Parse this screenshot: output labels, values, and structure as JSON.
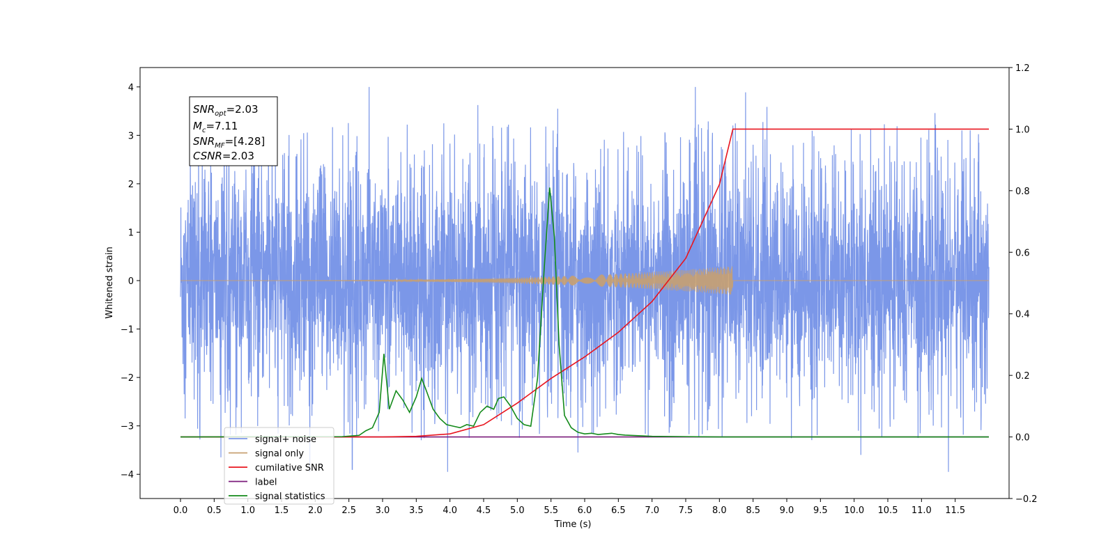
{
  "chart_data": {
    "type": "line",
    "xlabel": "Time (s)",
    "ylabel": "Whitened strain",
    "ylabel_right": "",
    "xlim": [
      -0.6,
      12.3
    ],
    "ylim": [
      -4.5,
      4.4
    ],
    "ylim_right": [
      -0.2,
      1.2
    ],
    "x_ticks": [
      "0.0",
      "0.5",
      "1.0",
      "1.5",
      "2.0",
      "2.5",
      "3.0",
      "3.5",
      "4.0",
      "4.5",
      "5.0",
      "5.5",
      "6.0",
      "6.5",
      "7.0",
      "7.5",
      "8.0",
      "8.5",
      "9.0",
      "9.5",
      "10.0",
      "10.5",
      "11.0",
      "11.5"
    ],
    "y_ticks": [
      4,
      3,
      2,
      1,
      0,
      -1,
      -2,
      -3,
      -4
    ],
    "y_ticks_right": [
      "1.2",
      "1.0",
      "0.8",
      "0.6",
      "0.4",
      "0.2",
      "0.0",
      "−0.2"
    ],
    "grid": false,
    "legend_position": "lower-left",
    "info_box": {
      "snr_opt": "=2.03",
      "mc": "=7.11",
      "snr_mf": "=[4.28]",
      "csnr": "=2.03"
    },
    "series": [
      {
        "name": "signal+ noise",
        "color": "#7b97e8",
        "axis": "left",
        "t_range": [
          0.0,
          12.0
        ],
        "envelope": {
          "core_amplitude": 1.75,
          "peak_max": 4.0,
          "peak_min": -3.95
        },
        "notable_peaks": [
          [
            2.8,
            4.0
          ],
          [
            5.6,
            3.55
          ],
          [
            0.6,
            -3.65
          ],
          [
            2.55,
            -3.9
          ],
          [
            5.9,
            -3.55
          ],
          [
            10.1,
            -3.6
          ],
          [
            11.4,
            -3.95
          ]
        ]
      },
      {
        "name": "signal only",
        "color": "#c8a070",
        "axis": "left",
        "t_range": [
          0.0,
          12.0
        ],
        "chirp_end": 8.2,
        "max_amplitude": 0.3
      },
      {
        "name": "cumilative SNR",
        "color": "#e8141e",
        "axis": "right",
        "x": [
          0.0,
          3.0,
          3.5,
          4.0,
          4.5,
          5.0,
          5.5,
          6.0,
          6.5,
          7.0,
          7.5,
          8.0,
          8.2,
          12.0
        ],
        "y": [
          0.0,
          0.0,
          0.002,
          0.01,
          0.04,
          0.11,
          0.19,
          0.26,
          0.34,
          0.44,
          0.58,
          0.82,
          1.0,
          1.0
        ]
      },
      {
        "name": "label",
        "color": "#7a1a7a",
        "axis": "right",
        "x": [
          0.0,
          12.0
        ],
        "y": [
          0.0,
          0.0
        ]
      },
      {
        "name": "signal statistics",
        "color": "#138a1a",
        "axis": "right",
        "x": [
          0.0,
          2.4,
          2.65,
          2.75,
          2.85,
          2.95,
          3.02,
          3.1,
          3.2,
          3.3,
          3.4,
          3.5,
          3.58,
          3.65,
          3.75,
          3.85,
          3.95,
          4.05,
          4.15,
          4.25,
          4.35,
          4.45,
          4.55,
          4.65,
          4.72,
          4.8,
          4.9,
          5.0,
          5.1,
          5.2,
          5.3,
          5.4,
          5.48,
          5.55,
          5.62,
          5.7,
          5.8,
          5.9,
          6.0,
          6.1,
          6.2,
          6.3,
          6.4,
          6.5,
          6.6,
          6.8,
          7.0,
          7.5,
          8.0,
          12.0
        ],
        "y": [
          0.0,
          0.001,
          0.005,
          0.02,
          0.03,
          0.08,
          0.27,
          0.09,
          0.15,
          0.12,
          0.08,
          0.13,
          0.19,
          0.15,
          0.09,
          0.06,
          0.04,
          0.035,
          0.03,
          0.04,
          0.035,
          0.08,
          0.1,
          0.09,
          0.125,
          0.13,
          0.1,
          0.06,
          0.04,
          0.035,
          0.19,
          0.55,
          0.81,
          0.65,
          0.3,
          0.07,
          0.03,
          0.015,
          0.01,
          0.012,
          0.008,
          0.01,
          0.012,
          0.008,
          0.006,
          0.004,
          0.002,
          0.001,
          0.0,
          0.0
        ]
      }
    ],
    "legend_entries": [
      "signal+ noise",
      "signal only",
      "cumilative SNR",
      "label",
      "signal statistics"
    ]
  }
}
